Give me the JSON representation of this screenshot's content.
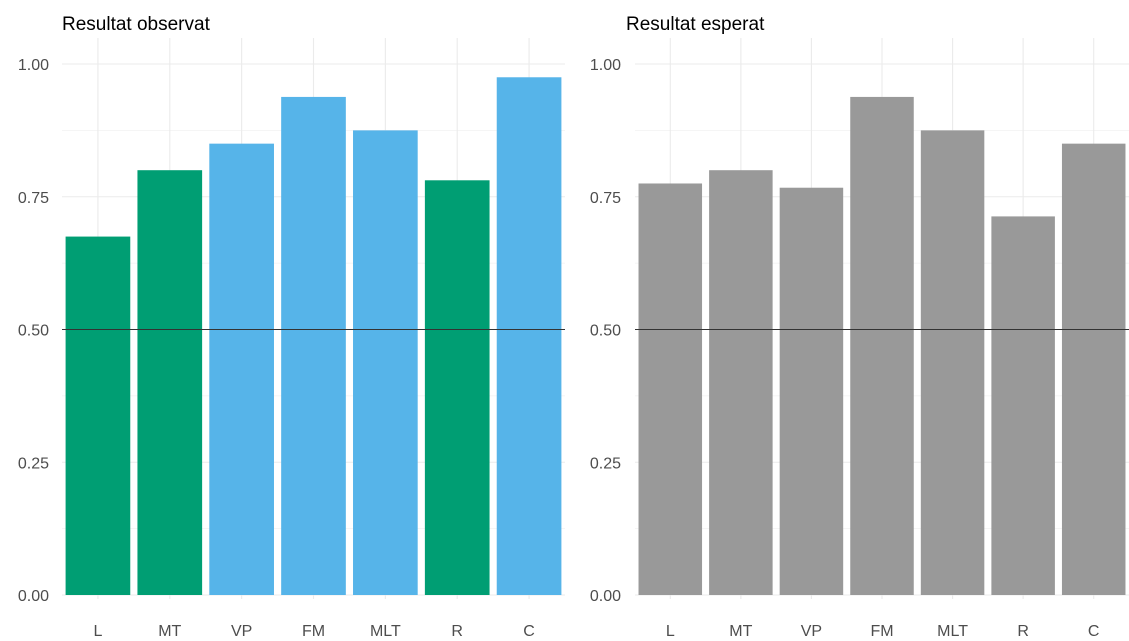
{
  "chart_data": [
    {
      "type": "bar",
      "title": "Resultat observat",
      "xlabel": "",
      "ylabel": "",
      "categories": [
        "L",
        "MT",
        "VP",
        "FM",
        "MLT",
        "R",
        "C"
      ],
      "values": [
        0.675,
        0.8,
        0.85,
        0.938,
        0.875,
        0.781,
        0.975
      ],
      "bar_colors": [
        "#009E73",
        "#009E73",
        "#56B4E9",
        "#56B4E9",
        "#56B4E9",
        "#009E73",
        "#56B4E9"
      ],
      "ylim": [
        0,
        1
      ],
      "yticks": [
        "0.00",
        "0.25",
        "0.50",
        "0.75",
        "1.00"
      ],
      "reference_line": 0.5,
      "grid": true,
      "legend": "none"
    },
    {
      "type": "bar",
      "title": "Resultat esperat",
      "xlabel": "",
      "ylabel": "",
      "categories": [
        "L",
        "MT",
        "VP",
        "FM",
        "MLT",
        "R",
        "C"
      ],
      "values": [
        0.775,
        0.8,
        0.767,
        0.938,
        0.875,
        0.713,
        0.85
      ],
      "bar_colors": [
        "#999999",
        "#999999",
        "#999999",
        "#999999",
        "#999999",
        "#999999",
        "#999999"
      ],
      "ylim": [
        0,
        1
      ],
      "yticks": [
        "0.00",
        "0.25",
        "0.50",
        "0.75",
        "1.00"
      ],
      "reference_line": 0.5,
      "grid": true,
      "legend": "none"
    }
  ],
  "colors": {
    "green": "#009E73",
    "blue": "#56B4E9",
    "gray": "#999999",
    "grid": "#ebebeb",
    "axis_text": "#4d4d4d",
    "reference_line": "#333333"
  }
}
